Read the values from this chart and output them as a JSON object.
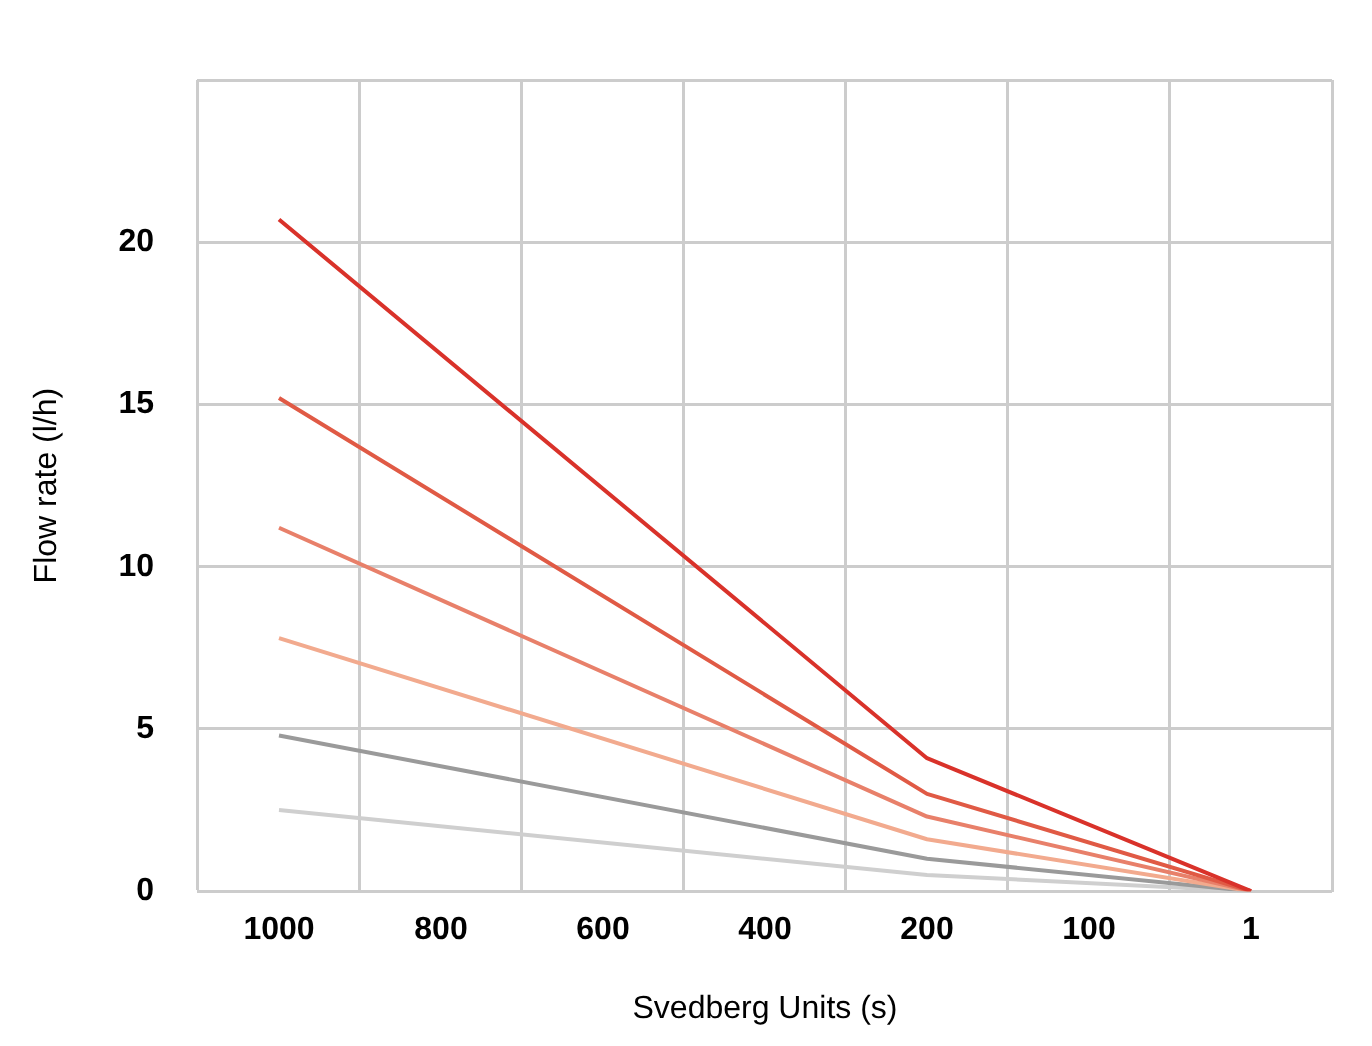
{
  "chart_data": {
    "type": "line",
    "xlabel": "Svedberg Units (s)",
    "ylabel": "Flow rate (l/h)",
    "categories": [
      "1000",
      "800",
      "600",
      "400",
      "200",
      "100",
      "1"
    ],
    "series": [
      {
        "color": "#d9322a",
        "values": [
          20.7,
          null,
          null,
          null,
          4.1,
          null,
          0
        ]
      },
      {
        "color": "#e05a45",
        "values": [
          15.2,
          null,
          null,
          null,
          3.0,
          null,
          0
        ]
      },
      {
        "color": "#e8806a",
        "values": [
          11.2,
          null,
          null,
          null,
          2.3,
          null,
          0
        ]
      },
      {
        "color": "#f2aa8e",
        "values": [
          7.8,
          null,
          null,
          null,
          1.6,
          null,
          0
        ]
      },
      {
        "color": "#9a9a9a",
        "values": [
          4.8,
          null,
          null,
          null,
          1.0,
          null,
          0
        ]
      },
      {
        "color": "#cfcfcf",
        "values": [
          2.5,
          null,
          null,
          null,
          0.5,
          null,
          0
        ]
      }
    ],
    "ylim": [
      0,
      25
    ],
    "yticks": [
      0,
      5,
      10,
      15,
      20,
      {
        "value": 25,
        "label": null
      }
    ],
    "grid": true,
    "marker": "none",
    "line_style": "solid"
  }
}
